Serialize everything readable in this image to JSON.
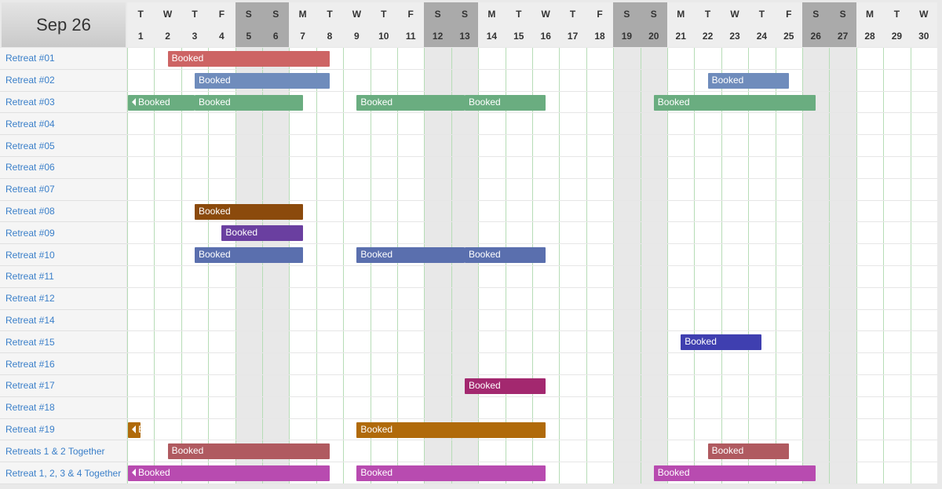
{
  "header": {
    "title": "Sep 26"
  },
  "days": [
    {
      "weekday": "T",
      "day": 1
    },
    {
      "weekday": "W",
      "day": 2
    },
    {
      "weekday": "T",
      "day": 3
    },
    {
      "weekday": "F",
      "day": 4
    },
    {
      "weekday": "S",
      "day": 5
    },
    {
      "weekday": "S",
      "day": 6
    },
    {
      "weekday": "M",
      "day": 7
    },
    {
      "weekday": "T",
      "day": 8
    },
    {
      "weekday": "W",
      "day": 9
    },
    {
      "weekday": "T",
      "day": 10
    },
    {
      "weekday": "F",
      "day": 11
    },
    {
      "weekday": "S",
      "day": 12
    },
    {
      "weekday": "S",
      "day": 13
    },
    {
      "weekday": "M",
      "day": 14
    },
    {
      "weekday": "T",
      "day": 15
    },
    {
      "weekday": "W",
      "day": 16
    },
    {
      "weekday": "T",
      "day": 17
    },
    {
      "weekday": "F",
      "day": 18
    },
    {
      "weekday": "S",
      "day": 19
    },
    {
      "weekday": "S",
      "day": 20
    },
    {
      "weekday": "M",
      "day": 21
    },
    {
      "weekday": "T",
      "day": 22
    },
    {
      "weekday": "W",
      "day": 23
    },
    {
      "weekday": "T",
      "day": 24
    },
    {
      "weekday": "F",
      "day": 25
    },
    {
      "weekday": "S",
      "day": 26
    },
    {
      "weekday": "S",
      "day": 27
    },
    {
      "weekday": "M",
      "day": 28
    },
    {
      "weekday": "T",
      "day": 29
    },
    {
      "weekday": "W",
      "day": 30
    }
  ],
  "rows": [
    {
      "name": "Retreat #01",
      "bookings": [
        {
          "start": 2,
          "end": 8,
          "label": "Booked",
          "color": "#cd6464"
        }
      ]
    },
    {
      "name": "Retreat #02",
      "bookings": [
        {
          "start": 3,
          "end": 8,
          "label": "Booked",
          "color": "#6f8cbc"
        },
        {
          "start": 22,
          "end": 25,
          "label": "Booked",
          "color": "#6f8cbc"
        }
      ]
    },
    {
      "name": "Retreat #03",
      "bookings": [
        {
          "continued": true,
          "end": 3,
          "label": "Booked",
          "color": "#6aad80"
        },
        {
          "start": 3,
          "end": 7,
          "label": "Booked",
          "color": "#6aad80"
        },
        {
          "start": 9,
          "end": 13,
          "label": "Booked",
          "color": "#6aad80"
        },
        {
          "start": 13,
          "end": 16,
          "label": "Booked",
          "color": "#6aad80"
        },
        {
          "start": 20,
          "end": 26,
          "label": "Booked",
          "color": "#6aad80"
        }
      ]
    },
    {
      "name": "Retreat #04",
      "bookings": []
    },
    {
      "name": "Retreat #05",
      "bookings": []
    },
    {
      "name": "Retreat #06",
      "bookings": []
    },
    {
      "name": "Retreat #07",
      "bookings": []
    },
    {
      "name": "Retreat #08",
      "bookings": [
        {
          "start": 3,
          "end": 7,
          "label": "Booked",
          "color": "#8b4a0c"
        }
      ]
    },
    {
      "name": "Retreat #09",
      "bookings": [
        {
          "start": 4,
          "end": 7,
          "label": "Booked",
          "color": "#6a3fa0"
        }
      ]
    },
    {
      "name": "Retreat #10",
      "bookings": [
        {
          "start": 3,
          "end": 7,
          "label": "Booked",
          "color": "#5a6fae"
        },
        {
          "start": 9,
          "end": 13,
          "label": "Booked",
          "color": "#5a6fae"
        },
        {
          "start": 13,
          "end": 16,
          "label": "Booked",
          "color": "#5a6fae"
        }
      ]
    },
    {
      "name": "Retreat #11",
      "bookings": []
    },
    {
      "name": "Retreat #12",
      "bookings": []
    },
    {
      "name": "Retreat #14",
      "bookings": []
    },
    {
      "name": "Retreat #15",
      "bookings": [
        {
          "start": 21,
          "end": 24,
          "label": "Booked",
          "color": "#3f3fb0"
        }
      ]
    },
    {
      "name": "Retreat #16",
      "bookings": []
    },
    {
      "name": "Retreat #17",
      "bookings": [
        {
          "start": 13,
          "end": 16,
          "label": "Booked",
          "color": "#a3286f"
        }
      ]
    },
    {
      "name": "Retreat #18",
      "bookings": []
    },
    {
      "name": "Retreat #19",
      "bookings": [
        {
          "continued": true,
          "end": 1,
          "label": "Booked",
          "color": "#b06a0a"
        },
        {
          "start": 9,
          "end": 16,
          "label": "Booked",
          "color": "#b06a0a"
        }
      ]
    },
    {
      "name": "Retreats 1 & 2 Together",
      "bookings": [
        {
          "start": 2,
          "end": 8,
          "label": "Booked",
          "color": "#b05a60"
        },
        {
          "start": 22,
          "end": 25,
          "label": "Booked",
          "color": "#b05a60"
        }
      ]
    },
    {
      "name": "Retreat 1, 2, 3 & 4 Together",
      "bookings": [
        {
          "continued": true,
          "end": 8,
          "label": "Booked",
          "color": "#b84bb0"
        },
        {
          "start": 9,
          "end": 16,
          "label": "Booked",
          "color": "#b84bb0"
        },
        {
          "start": 20,
          "end": 26,
          "label": "Booked",
          "color": "#b84bb0"
        }
      ]
    }
  ]
}
